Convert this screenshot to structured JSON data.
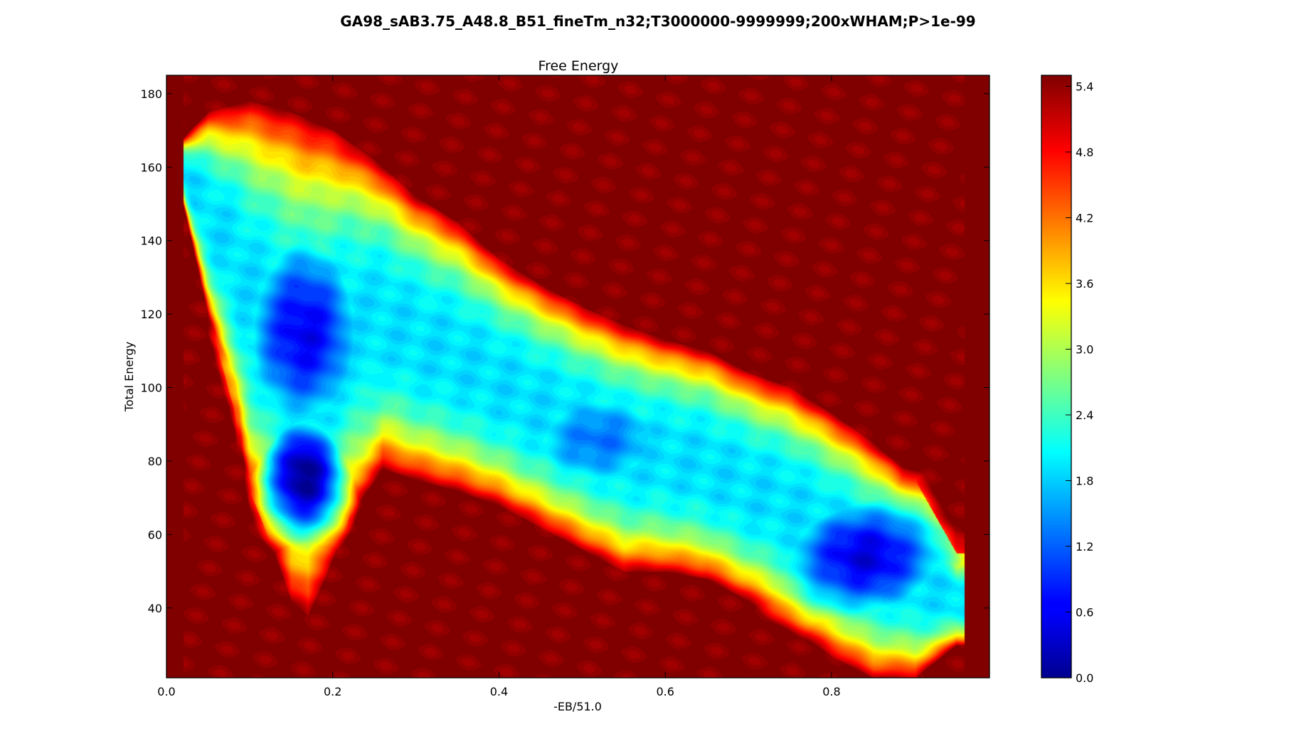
{
  "figure": {
    "suptitle": "GA98_sAB3.75_A48.8_B51_fineTm_n32;T3000000-9999999;200xWHAM;P>1e-99"
  },
  "chart_data": {
    "type": "heatmap",
    "subtype": "filled-contour",
    "title": "Free Energy",
    "xlabel": "-EB/51.0",
    "ylabel": "Total Energy",
    "xlim": [
      0.0,
      0.99
    ],
    "ylim": [
      21,
      185
    ],
    "xticks": [
      0.0,
      0.2,
      0.4,
      0.6,
      0.8
    ],
    "xtick_labels": [
      "0.0",
      "0.2",
      "0.4",
      "0.6",
      "0.8"
    ],
    "yticks": [
      40,
      60,
      80,
      100,
      120,
      140,
      160,
      180
    ],
    "ytick_labels": [
      "40",
      "60",
      "80",
      "100",
      "120",
      "140",
      "160",
      "180"
    ],
    "colormap": "jet",
    "background_value": 5.5,
    "colorbar": {
      "min": 0.0,
      "max": 5.5,
      "ticks": [
        0.0,
        0.6,
        1.2,
        1.8,
        2.4,
        3.0,
        3.6,
        4.2,
        4.8,
        5.4
      ],
      "tick_labels": [
        "0.0",
        "0.6",
        "1.2",
        "1.8",
        "2.4",
        "3.0",
        "3.6",
        "4.2",
        "4.8",
        "5.4"
      ]
    },
    "minima": [
      {
        "x": 0.165,
        "y": 76,
        "value": 0.05
      },
      {
        "x": 0.165,
        "y": 115,
        "value": 0.6
      },
      {
        "x": 0.52,
        "y": 86,
        "value": 1.3
      },
      {
        "x": 0.84,
        "y": 54,
        "value": 0.5
      }
    ],
    "basin_boundary_upper": [
      [
        0.02,
        168
      ],
      [
        0.05,
        175
      ],
      [
        0.1,
        178
      ],
      [
        0.15,
        175
      ],
      [
        0.2,
        170
      ],
      [
        0.25,
        162
      ],
      [
        0.3,
        152
      ],
      [
        0.35,
        145
      ],
      [
        0.4,
        135
      ],
      [
        0.45,
        128
      ],
      [
        0.5,
        122
      ],
      [
        0.55,
        117
      ],
      [
        0.6,
        113
      ],
      [
        0.65,
        110
      ],
      [
        0.7,
        104
      ],
      [
        0.75,
        100
      ],
      [
        0.8,
        93
      ],
      [
        0.85,
        85
      ],
      [
        0.9,
        75
      ],
      [
        0.95,
        55
      ]
    ],
    "basin_boundary_lower": [
      [
        0.02,
        150
      ],
      [
        0.05,
        120
      ],
      [
        0.08,
        95
      ],
      [
        0.1,
        72
      ],
      [
        0.13,
        55
      ],
      [
        0.15,
        42
      ],
      [
        0.17,
        38
      ],
      [
        0.19,
        48
      ],
      [
        0.22,
        65
      ],
      [
        0.26,
        78
      ],
      [
        0.3,
        75
      ],
      [
        0.35,
        72
      ],
      [
        0.4,
        68
      ],
      [
        0.45,
        62
      ],
      [
        0.5,
        56
      ],
      [
        0.55,
        50
      ],
      [
        0.6,
        50
      ],
      [
        0.65,
        48
      ],
      [
        0.7,
        42
      ],
      [
        0.75,
        35
      ],
      [
        0.8,
        27
      ],
      [
        0.85,
        21
      ],
      [
        0.9,
        21
      ],
      [
        0.95,
        30
      ]
    ]
  }
}
